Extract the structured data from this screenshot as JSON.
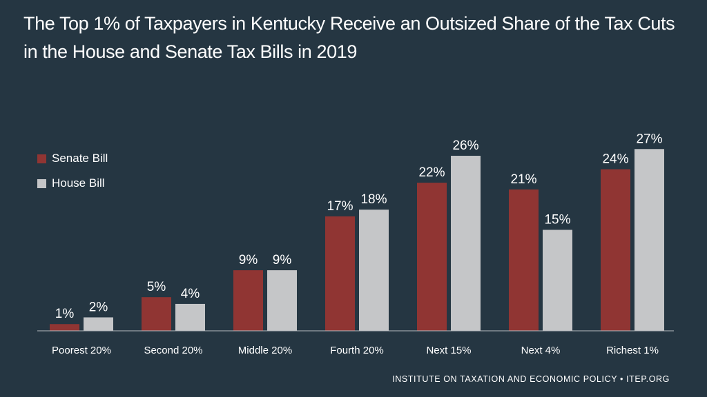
{
  "chart_data": {
    "type": "bar",
    "title_lines": [
      "The Top 1% of Taxpayers in Kentucky Receive an Outsized Share of the Tax Cuts",
      "in the House and Senate Tax Bills in 2019"
    ],
    "categories": [
      "Poorest 20%",
      "Second 20%",
      "Middle 20%",
      "Fourth 20%",
      "Next 15%",
      "Next 4%",
      "Richest 1%"
    ],
    "series": [
      {
        "name": "Senate Bill",
        "color": "#903533",
        "values": [
          1,
          5,
          9,
          17,
          22,
          21,
          24
        ],
        "labels": [
          "1%",
          "5%",
          "9%",
          "17%",
          "22%",
          "21%",
          "24%"
        ]
      },
      {
        "name": "House Bill",
        "color": "#C5C6C8",
        "values": [
          2,
          4,
          9,
          18,
          26,
          15,
          27
        ],
        "labels": [
          "2%",
          "4%",
          "9%",
          "18%",
          "26%",
          "15%",
          "27%"
        ]
      }
    ],
    "ylim": [
      0,
      30
    ],
    "xlabel": "",
    "ylabel": "",
    "grid": false,
    "legend_position": "left"
  },
  "footer": "INSTITUTE ON TAXATION AND ECONOMIC POLICY • ITEP.ORG"
}
